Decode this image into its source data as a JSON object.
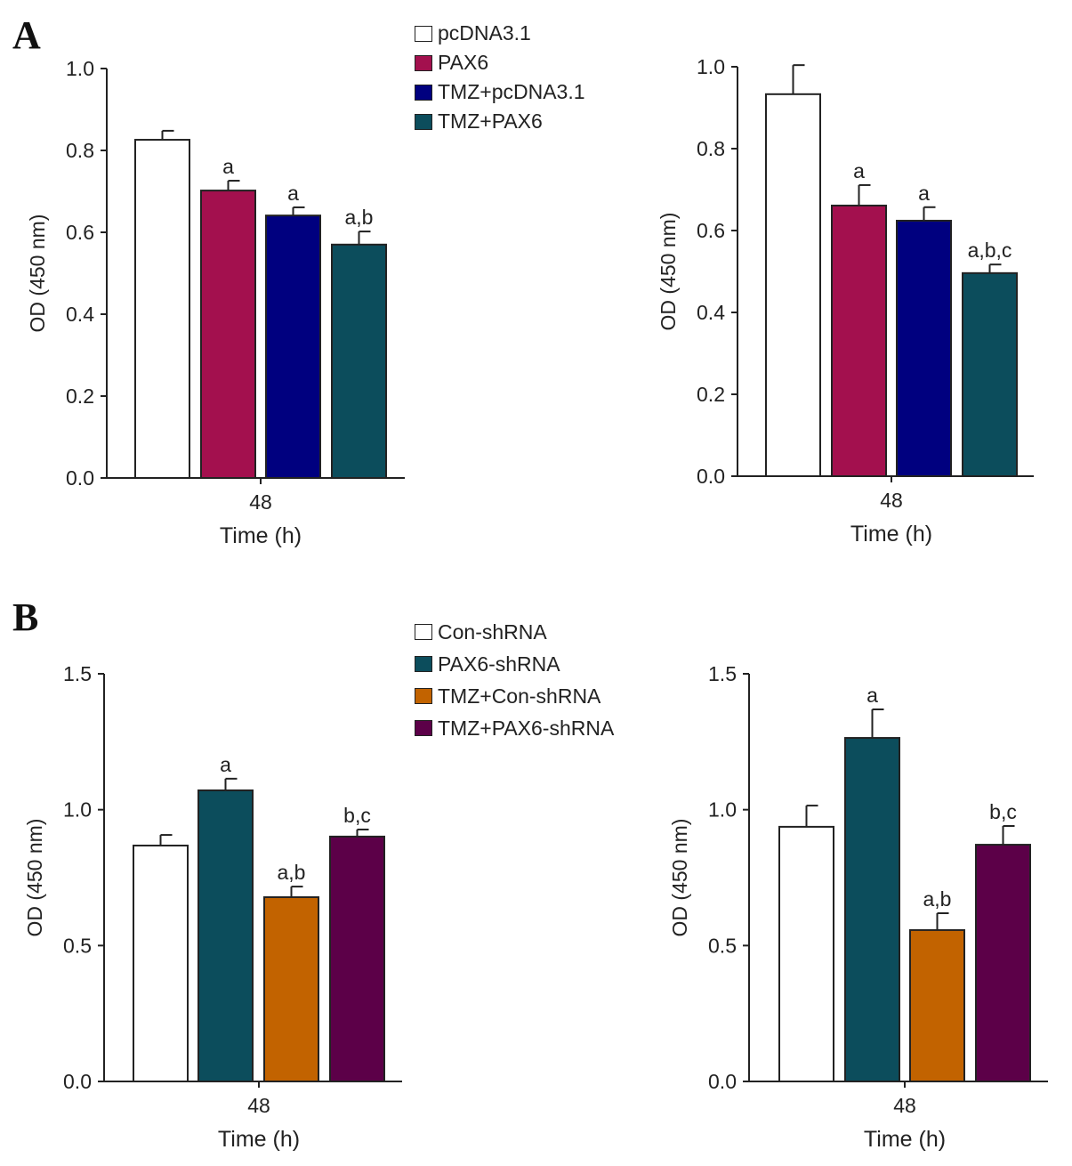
{
  "panels": {
    "a": "A",
    "b": "B"
  },
  "legends": {
    "a": [
      {
        "label": "pcDNA3.1",
        "color": "#ffffff"
      },
      {
        "label": "PAX6",
        "color": "#a3104e"
      },
      {
        "label": "TMZ+pcDNA3.1",
        "color": "#00007f"
      },
      {
        "label": "TMZ+PAX6",
        "color": "#0c4d5c"
      }
    ],
    "b": [
      {
        "label": "Con-shRNA",
        "color": "#ffffff"
      },
      {
        "label": "PAX6-shRNA",
        "color": "#0c4d5c"
      },
      {
        "label": "TMZ+Con-shRNA",
        "color": "#c26300"
      },
      {
        "label": "TMZ+PAX6-shRNA",
        "color": "#5c0048"
      }
    ]
  },
  "chart_data": [
    {
      "type": "bar",
      "panel": "A",
      "xlabel": "Time (h)",
      "ylabel": "OD (450 nm)",
      "categories": [
        "48"
      ],
      "ylim": [
        0,
        1.0
      ],
      "yticks": [
        "0.0",
        "0.2",
        "0.4",
        "0.6",
        "0.8",
        "1.0"
      ],
      "series": [
        {
          "name": "pcDNA3.1",
          "values": [
            0.826
          ],
          "error": [
            0.022
          ],
          "annotation": ""
        },
        {
          "name": "PAX6",
          "values": [
            0.702
          ],
          "error": [
            0.024
          ],
          "annotation": "a"
        },
        {
          "name": "TMZ+pcDNA3.1",
          "values": [
            0.641
          ],
          "error": [
            0.02
          ],
          "annotation": "a"
        },
        {
          "name": "TMZ+PAX6",
          "values": [
            0.57
          ],
          "error": [
            0.032
          ],
          "annotation": "a,b"
        }
      ]
    },
    {
      "type": "bar",
      "panel": "A",
      "xlabel": "Time (h)",
      "ylabel": "OD (450 nm)",
      "categories": [
        "48"
      ],
      "ylim": [
        0,
        1.0
      ],
      "yticks": [
        "0.0",
        "0.2",
        "0.4",
        "0.6",
        "0.8",
        "1.0"
      ],
      "series": [
        {
          "name": "pcDNA3.1",
          "values": [
            0.933
          ],
          "error": [
            0.071
          ],
          "annotation": ""
        },
        {
          "name": "PAX6",
          "values": [
            0.661
          ],
          "error": [
            0.05
          ],
          "annotation": "a"
        },
        {
          "name": "TMZ+pcDNA3.1",
          "values": [
            0.624
          ],
          "error": [
            0.033
          ],
          "annotation": "a"
        },
        {
          "name": "TMZ+PAX6",
          "values": [
            0.496
          ],
          "error": [
            0.021
          ],
          "annotation": "a,b,c"
        }
      ]
    },
    {
      "type": "bar",
      "panel": "B",
      "xlabel": "Time (h)",
      "ylabel": "OD (450 nm)",
      "categories": [
        "48"
      ],
      "ylim": [
        0,
        1.5
      ],
      "yticks": [
        "0.0",
        "0.5",
        "1.0",
        "1.5"
      ],
      "series": [
        {
          "name": "Con-shRNA",
          "values": [
            0.868
          ],
          "error": [
            0.039
          ],
          "annotation": ""
        },
        {
          "name": "PAX6-shRNA",
          "values": [
            1.071
          ],
          "error": [
            0.043
          ],
          "annotation": "a"
        },
        {
          "name": "TMZ+Con-shRNA",
          "values": [
            0.678
          ],
          "error": [
            0.039
          ],
          "annotation": "a,b"
        },
        {
          "name": "TMZ+PAX6-shRNA",
          "values": [
            0.901
          ],
          "error": [
            0.026
          ],
          "annotation": "b,c"
        }
      ]
    },
    {
      "type": "bar",
      "panel": "B",
      "xlabel": "Time (h)",
      "ylabel": "OD (450 nm)",
      "categories": [
        "48"
      ],
      "ylim": [
        0,
        1.5
      ],
      "yticks": [
        "0.0",
        "0.5",
        "1.0",
        "1.5"
      ],
      "series": [
        {
          "name": "Con-shRNA",
          "values": [
            0.937
          ],
          "error": [
            0.078
          ],
          "annotation": ""
        },
        {
          "name": "PAX6-shRNA",
          "values": [
            1.264
          ],
          "error": [
            0.105
          ],
          "annotation": "a"
        },
        {
          "name": "TMZ+Con-shRNA",
          "values": [
            0.557
          ],
          "error": [
            0.062
          ],
          "annotation": "a,b"
        },
        {
          "name": "TMZ+PAX6-shRNA",
          "values": [
            0.871
          ],
          "error": [
            0.069
          ],
          "annotation": "b,c"
        }
      ]
    }
  ]
}
